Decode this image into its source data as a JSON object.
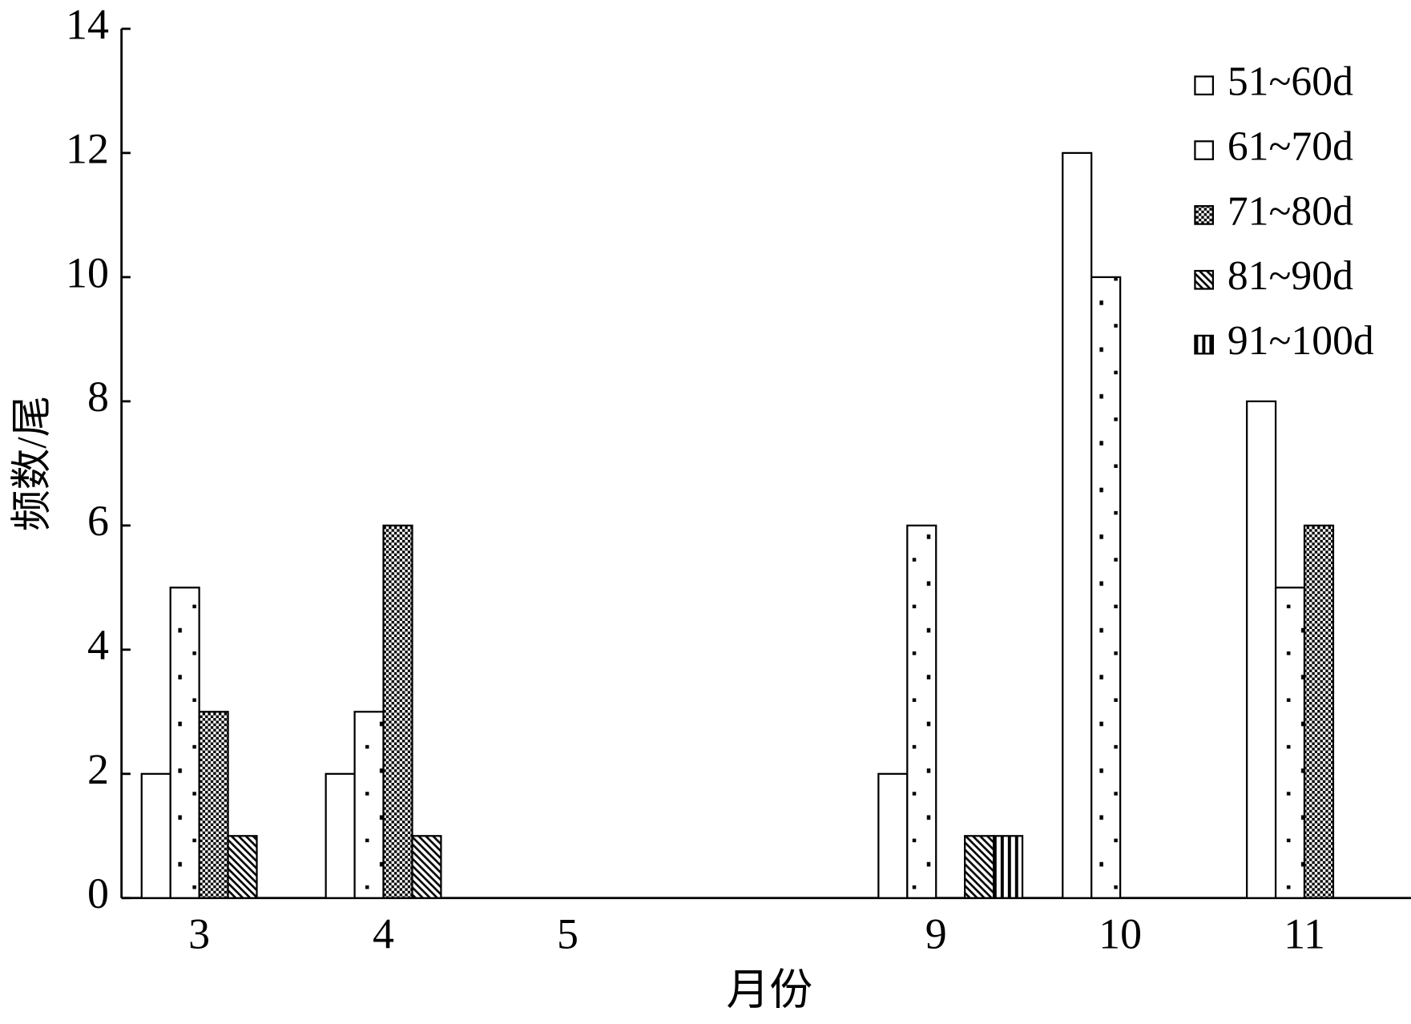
{
  "chart_data": {
    "type": "bar",
    "x_label": "月份",
    "y_label": "频数/尾",
    "categories": [
      "3",
      "4",
      "5",
      null,
      "9",
      "10",
      "11"
    ],
    "series": [
      {
        "name": "51~60d",
        "color": "#ffffff",
        "pattern": "solid",
        "values": [
          2,
          2,
          0,
          0,
          2,
          12,
          8
        ]
      },
      {
        "name": "61~70d",
        "color": "#ffffff",
        "pattern": "dots",
        "values": [
          5,
          3,
          0,
          0,
          6,
          10,
          5
        ]
      },
      {
        "name": "71~80d",
        "color": "#000000",
        "pattern": "checker",
        "values": [
          3,
          6,
          0,
          0,
          0,
          0,
          6
        ]
      },
      {
        "name": "81~90d",
        "color": "#000000",
        "pattern": "diagonal",
        "values": [
          1,
          1,
          0,
          0,
          1,
          0,
          0
        ]
      },
      {
        "name": "91~100d",
        "color": "#000000",
        "pattern": "vertical",
        "values": [
          0,
          0,
          0,
          0,
          1,
          0,
          0
        ]
      }
    ],
    "ylim": [
      0,
      14
    ],
    "yticks": [
      0,
      2,
      4,
      6,
      8,
      10,
      12,
      14
    ],
    "legend": "top-right",
    "grid": false
  }
}
